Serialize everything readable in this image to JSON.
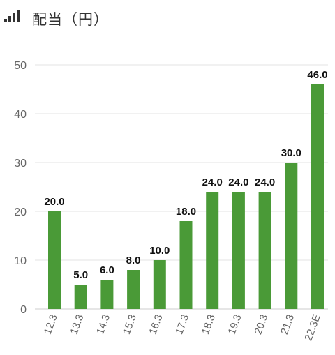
{
  "header": {
    "title": "配当（円）",
    "icon": "bar-chart-icon"
  },
  "chart_data": {
    "type": "bar",
    "categories": [
      "12.3",
      "13.3",
      "14.3",
      "15.3",
      "16.3",
      "17.3",
      "18.3",
      "19.3",
      "20.3",
      "21.3",
      "22.3E"
    ],
    "values": [
      20.0,
      5.0,
      6.0,
      8.0,
      10.0,
      18.0,
      24.0,
      24.0,
      24.0,
      30.0,
      46.0
    ],
    "data_labels": [
      "20.0",
      "5.0",
      "6.0",
      "8.0",
      "10.0",
      "18.0",
      "24.0",
      "24.0",
      "24.0",
      "30.0",
      "46.0"
    ],
    "title": "",
    "xlabel": "",
    "ylabel": "",
    "ylim": [
      0,
      50
    ],
    "yticks": [
      "0",
      "10",
      "20",
      "30",
      "40",
      "50"
    ],
    "grid": true,
    "bar_color": "#4a9a37",
    "grid_color": "#e3e3e3",
    "axis_text_color": "#666666",
    "label_color": "#111111"
  }
}
